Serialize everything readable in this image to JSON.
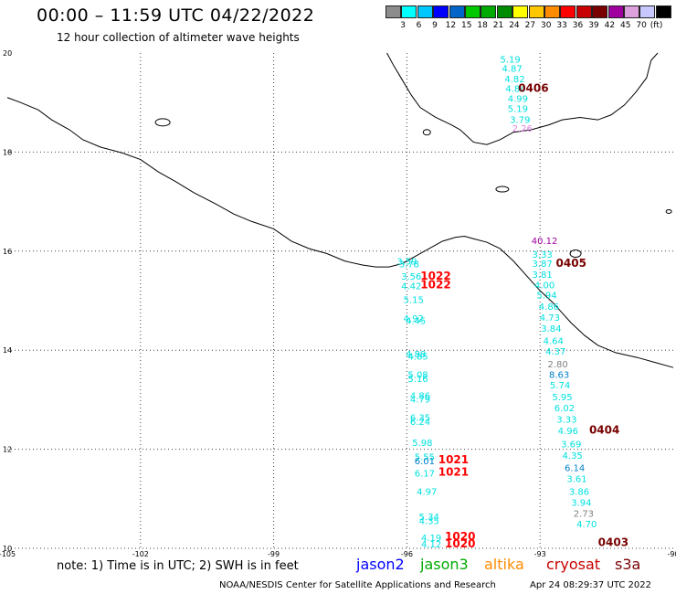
{
  "header": {
    "title": "00:00 – 11:59 UTC 04/22/2022",
    "subtitle": "12 hour collection of altimeter wave heights"
  },
  "colorbar": {
    "unit": "(ft)",
    "entries": [
      {
        "label": "",
        "color": "#8c8c8c"
      },
      {
        "label": "3",
        "color": "#00ffff"
      },
      {
        "label": "6",
        "color": "#00c8ff"
      },
      {
        "label": "9",
        "color": "#0000ff"
      },
      {
        "label": "12",
        "color": "#0064c8"
      },
      {
        "label": "15",
        "color": "#00c800"
      },
      {
        "label": "18",
        "color": "#00aa00"
      },
      {
        "label": "21",
        "color": "#008c00"
      },
      {
        "label": "24",
        "color": "#ffff00"
      },
      {
        "label": "27",
        "color": "#ffc800"
      },
      {
        "label": "30",
        "color": "#ff8c00"
      },
      {
        "label": "33",
        "color": "#ff0000"
      },
      {
        "label": "36",
        "color": "#c80000"
      },
      {
        "label": "39",
        "color": "#780000"
      },
      {
        "label": "42",
        "color": "#a000a0"
      },
      {
        "label": "45",
        "color": "#dca0dc"
      },
      {
        "label": "70",
        "color": "#c8c8ff"
      },
      {
        "label": "",
        "color": "#000000"
      }
    ]
  },
  "axes": {
    "lon_ticks": [
      "-105",
      "-102",
      "-99",
      "-96",
      "-93",
      "-90"
    ],
    "lat_ticks": [
      "10",
      "12",
      "14",
      "16",
      "18",
      "20"
    ]
  },
  "tracks": {
    "northeast_track": [
      {
        "value": "5.19",
        "lon": -93.67,
        "lat": 19.81,
        "color": "#00e0e0"
      },
      {
        "value": "4.87",
        "lon": -93.63,
        "lat": 19.62,
        "color": "#00e0e0"
      },
      {
        "value": "4.82",
        "lon": -93.57,
        "lat": 19.41,
        "color": "#00e0e0"
      },
      {
        "value": "4.84",
        "lon": -93.55,
        "lat": 19.22,
        "color": "#00e0e0"
      },
      {
        "value": "4.99",
        "lon": -93.5,
        "lat": 19.01,
        "color": "#00e0e0"
      },
      {
        "value": "5.19",
        "lon": -93.5,
        "lat": 18.81,
        "color": "#00e0e0"
      },
      {
        "value": "3.79",
        "lon": -93.45,
        "lat": 18.59,
        "color": "#00e0e0"
      },
      {
        "value": "2.26",
        "lon": -93.4,
        "lat": 18.41,
        "color": "#e080e0"
      },
      {
        "value": "40.12",
        "lon": -92.9,
        "lat": 16.14,
        "color": "#a000a0"
      },
      {
        "value": "3.33",
        "lon": -92.95,
        "lat": 15.87,
        "color": "#00e0e0"
      },
      {
        "value": "3.87",
        "lon": -92.95,
        "lat": 15.68,
        "color": "#00e0e0"
      },
      {
        "value": "3.81",
        "lon": -92.95,
        "lat": 15.46,
        "color": "#00e0e0"
      },
      {
        "value": "4.00",
        "lon": -92.9,
        "lat": 15.25,
        "color": "#00e0e0"
      },
      {
        "value": "5.94",
        "lon": -92.85,
        "lat": 15.05,
        "color": "#00e0e0"
      },
      {
        "value": "4.86",
        "lon": -92.8,
        "lat": 14.82,
        "color": "#00e0e0"
      },
      {
        "value": "4.73",
        "lon": -92.78,
        "lat": 14.59,
        "color": "#00e0e0"
      },
      {
        "value": "3.84",
        "lon": -92.75,
        "lat": 14.37,
        "color": "#00e0e0"
      },
      {
        "value": "4.64",
        "lon": -92.7,
        "lat": 14.12,
        "color": "#00e0e0"
      },
      {
        "value": "4.37",
        "lon": -92.65,
        "lat": 13.91,
        "color": "#00e0e0"
      },
      {
        "value": "2.80",
        "lon": -92.6,
        "lat": 13.65,
        "color": "#808080"
      },
      {
        "value": "8.63",
        "lon": -92.57,
        "lat": 13.44,
        "color": "#0080c8"
      },
      {
        "value": "5.74",
        "lon": -92.55,
        "lat": 13.23,
        "color": "#00e0e0"
      },
      {
        "value": "5.95",
        "lon": -92.5,
        "lat": 12.99,
        "color": "#00e0e0"
      },
      {
        "value": "6.02",
        "lon": -92.45,
        "lat": 12.77,
        "color": "#00e0e0"
      },
      {
        "value": "3.33",
        "lon": -92.4,
        "lat": 12.54,
        "color": "#00e0e0"
      },
      {
        "value": "4.96",
        "lon": -92.37,
        "lat": 12.31,
        "color": "#00e0e0"
      },
      {
        "value": "3.69",
        "lon": -92.3,
        "lat": 12.04,
        "color": "#00e0e0"
      },
      {
        "value": "4.35",
        "lon": -92.27,
        "lat": 11.81,
        "color": "#00e0e0"
      },
      {
        "value": "6.14",
        "lon": -92.22,
        "lat": 11.56,
        "color": "#0080c8"
      },
      {
        "value": "3.61",
        "lon": -92.17,
        "lat": 11.34,
        "color": "#00e0e0"
      },
      {
        "value": "3.86",
        "lon": -92.12,
        "lat": 11.08,
        "color": "#00e0e0"
      },
      {
        "value": "3.94",
        "lon": -92.07,
        "lat": 10.86,
        "color": "#00e0e0"
      },
      {
        "value": "2.73",
        "lon": -92.02,
        "lat": 10.64,
        "color": "#808080"
      },
      {
        "value": "4.70",
        "lon": -91.95,
        "lat": 10.42,
        "color": "#00e0e0"
      }
    ],
    "southwest_track": [
      {
        "value": "3.59",
        "lon": -96.0,
        "lat": 15.73,
        "color": "#00e0e0"
      },
      {
        "value": "3.78",
        "lon": -95.95,
        "lat": 15.67,
        "color": "#00e0e0"
      },
      {
        "value": "3.56",
        "lon": -95.9,
        "lat": 15.42,
        "color": "#00e0e0"
      },
      {
        "value": "4.42",
        "lon": -95.9,
        "lat": 15.23,
        "color": "#00e0e0"
      },
      {
        "value": "5.15",
        "lon": -95.85,
        "lat": 14.95,
        "color": "#00e0e0"
      },
      {
        "value": "4.92",
        "lon": -95.85,
        "lat": 14.58,
        "color": "#00e0e0"
      },
      {
        "value": "4.45",
        "lon": -95.8,
        "lat": 14.53,
        "color": "#00e0e0"
      },
      {
        "value": "4.88",
        "lon": -95.8,
        "lat": 13.86,
        "color": "#00e0e0"
      },
      {
        "value": "4.85",
        "lon": -95.75,
        "lat": 13.81,
        "color": "#00e0e0"
      },
      {
        "value": "5.08",
        "lon": -95.75,
        "lat": 13.44,
        "color": "#00e0e0"
      },
      {
        "value": "5.16",
        "lon": -95.75,
        "lat": 13.36,
        "color": "#00e0e0"
      },
      {
        "value": "4.86",
        "lon": -95.7,
        "lat": 13.02,
        "color": "#00e0e0"
      },
      {
        "value": "4.79",
        "lon": -95.7,
        "lat": 12.94,
        "color": "#00e0e0"
      },
      {
        "value": "6.35",
        "lon": -95.7,
        "lat": 12.57,
        "color": "#00e0e0"
      },
      {
        "value": "6.24",
        "lon": -95.7,
        "lat": 12.49,
        "color": "#00e0e0"
      },
      {
        "value": "5.98",
        "lon": -95.65,
        "lat": 12.07,
        "color": "#00e0e0"
      },
      {
        "value": "5.55",
        "lon": -95.6,
        "lat": 11.78,
        "color": "#00e0e0"
      },
      {
        "value": "6.01",
        "lon": -95.6,
        "lat": 11.7,
        "color": "#0080c8"
      },
      {
        "value": "6.17",
        "lon": -95.6,
        "lat": 11.45,
        "color": "#00e0e0"
      },
      {
        "value": "4.97",
        "lon": -95.55,
        "lat": 11.08,
        "color": "#00e0e0"
      },
      {
        "value": "5.34",
        "lon": -95.5,
        "lat": 10.57,
        "color": "#00e0e0"
      },
      {
        "value": "4.35",
        "lon": -95.5,
        "lat": 10.49,
        "color": "#00e0e0"
      },
      {
        "value": "4.19",
        "lon": -95.45,
        "lat": 10.15,
        "color": "#00e0e0"
      },
      {
        "value": "4.12",
        "lon": -95.45,
        "lat": 10.02,
        "color": "#00e0e0"
      }
    ]
  },
  "time_labels": [
    {
      "text": "0406",
      "lon": -93.15,
      "lat": 19.22,
      "color": "#780000"
    },
    {
      "text": "0405",
      "lon": -92.3,
      "lat": 15.68,
      "color": "#780000"
    },
    {
      "text": "0404",
      "lon": -91.55,
      "lat": 12.32,
      "color": "#780000"
    },
    {
      "text": "0403",
      "lon": -91.35,
      "lat": 10.05,
      "color": "#780000"
    },
    {
      "text": "1022",
      "lon": -95.35,
      "lat": 15.42,
      "color": "#ff0000"
    },
    {
      "text": "1022",
      "lon": -95.35,
      "lat": 15.25,
      "color": "#ff0000"
    },
    {
      "text": "1021",
      "lon": -94.95,
      "lat": 11.72,
      "color": "#ff0000"
    },
    {
      "text": "1021",
      "lon": -94.95,
      "lat": 11.47,
      "color": "#ff0000"
    },
    {
      "text": "1020",
      "lon": -94.8,
      "lat": 10.17,
      "color": "#ff0000"
    },
    {
      "text": "1020",
      "lon": -94.8,
      "lat": 10.02,
      "color": "#ff0000"
    }
  ],
  "footer": {
    "note": "note: 1) Time is in UTC; 2) SWH is in feet",
    "satellites": [
      {
        "name": "jason2",
        "color": "#0000ff"
      },
      {
        "name": "jason3",
        "color": "#00aa00"
      },
      {
        "name": "altika",
        "color": "#ff8c00"
      },
      {
        "name": "cryosat",
        "color": "#c80000"
      },
      {
        "name": "s3a",
        "color": "#780000"
      }
    ],
    "credit": "NOAA/NESDIS Center for Satellite Applications and Research",
    "generated": "Apr 24 08:29:37 UTC 2022"
  }
}
